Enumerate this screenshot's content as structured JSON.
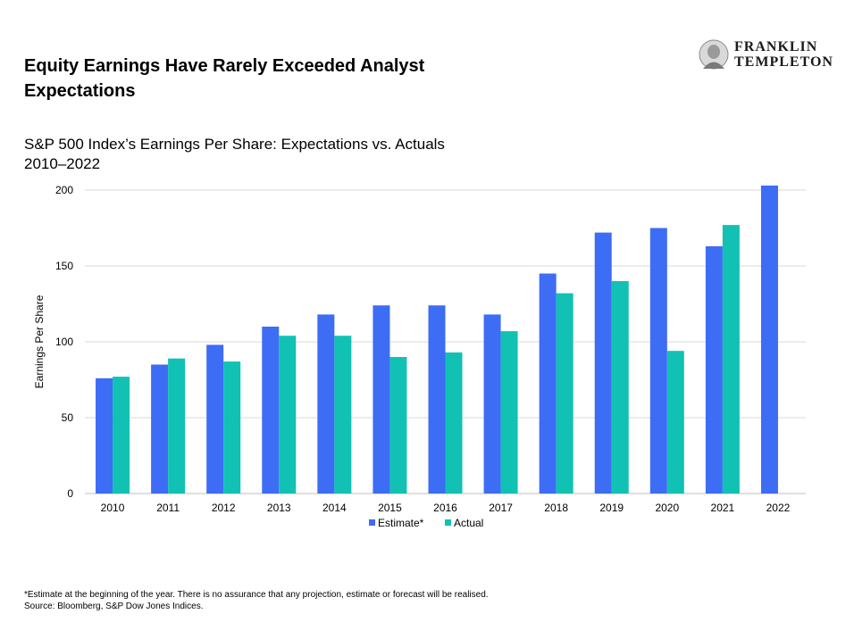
{
  "header": {
    "title_line1": "Equity Earnings Have Rarely Exceeded Analyst",
    "title_line2": "Expectations",
    "logo_line1": "FRANKLIN",
    "logo_line2": "TEMPLETON"
  },
  "subtitle": {
    "line1": "S&P 500 Index’s Earnings Per Share: Expectations vs. Actuals",
    "line2": "2010–2022"
  },
  "chart_data": {
    "type": "bar",
    "ylabel": "Earnings Per Share",
    "ylim": [
      0,
      200
    ],
    "yticks": [
      0,
      50,
      100,
      150,
      200
    ],
    "grid": true,
    "legend_position": "bottom",
    "categories": [
      "2010",
      "2011",
      "2012",
      "2013",
      "2014",
      "2015",
      "2016",
      "2017",
      "2018",
      "2019",
      "2020",
      "2021",
      "2022"
    ],
    "series": [
      {
        "name": "Estimate*",
        "color": "#3d6cf5",
        "values": [
          76,
          85,
          98,
          110,
          118,
          124,
          124,
          118,
          145,
          172,
          175,
          163,
          203
        ]
      },
      {
        "name": "Actual",
        "color": "#11c1b4",
        "values": [
          77,
          89,
          87,
          104,
          104,
          90,
          93,
          107,
          132,
          140,
          94,
          177,
          null
        ]
      }
    ]
  },
  "footnote": {
    "line1": "*Estimate at the beginning of the year. There is no assurance that any projection, estimate or forecast will be realised.",
    "line2": "Source: Bloomberg, S&P Dow Jones Indices."
  }
}
